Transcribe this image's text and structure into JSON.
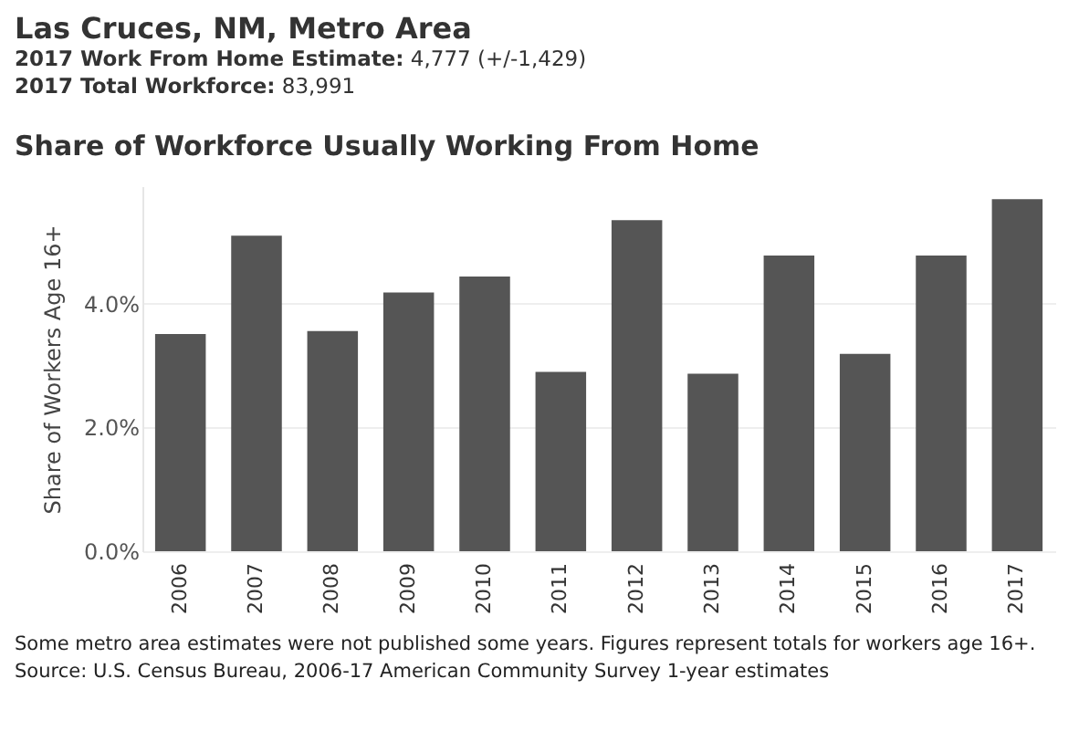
{
  "chart_data": {
    "type": "bar",
    "title": "Share of Workforce Usually Working From Home",
    "ylabel": "Share of Workers Age 16+",
    "annotations": [
      "Las Cruces, NM, Metro Area",
      "2017 Work From Home Estimate: 4,777 (+/-1,429)",
      "2017 Total Workforce: 83,991",
      "Some metro area estimates were not published some years. Figures represent totals for workers age 16+.",
      "Source: U.S. Census Bureau, 2006-17 American Community Survey 1-year estimates"
    ],
    "categories": [
      "2006",
      "2007",
      "2008",
      "2009",
      "2010",
      "2011",
      "2012",
      "2013",
      "2014",
      "2015",
      "2016",
      "2017"
    ],
    "values": [
      3.51,
      5.1,
      3.56,
      4.18,
      4.44,
      2.9,
      5.35,
      2.87,
      4.78,
      3.19,
      4.78,
      5.69
    ],
    "color": "#555555",
    "ylim": [
      0,
      5.9
    ],
    "yticks": [
      {
        "value": 0,
        "label": "0.0%"
      },
      {
        "value": 2,
        "label": "2.0%"
      },
      {
        "value": 4,
        "label": "4.0%"
      }
    ],
    "grid": "y"
  }
}
